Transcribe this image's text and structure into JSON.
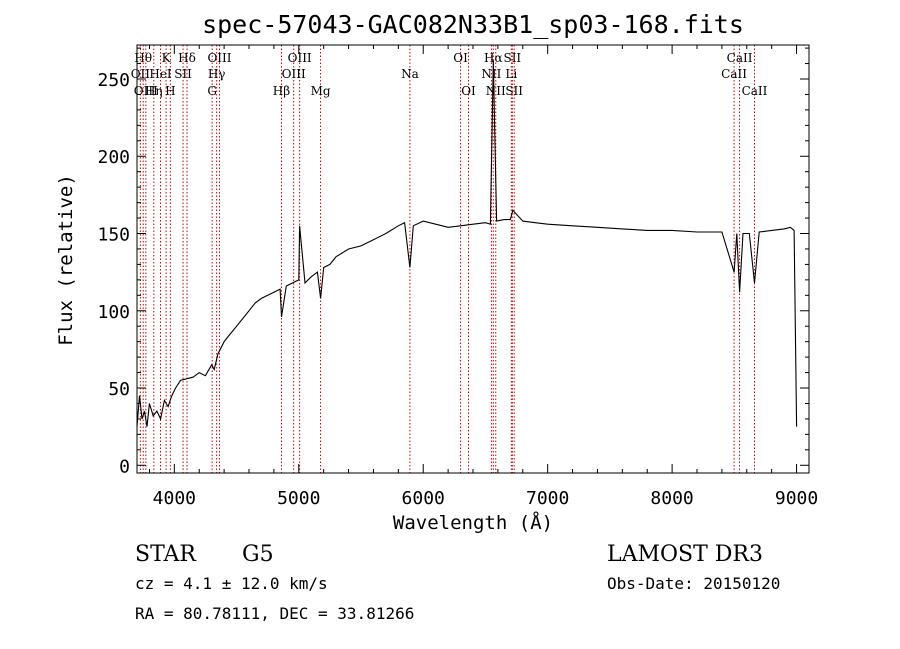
{
  "chart_data": {
    "type": "line",
    "title": "spec-57043-GAC082N33B1_sp03-168.fits",
    "xlabel": "Wavelength (Å)",
    "ylabel": "Flux (relative)",
    "xlim": [
      3700,
      9100
    ],
    "ylim": [
      -5,
      272
    ],
    "x_ticks": [
      4000,
      5000,
      6000,
      7000,
      8000,
      9000
    ],
    "x_tick_labels": [
      "4000",
      "5000",
      "6000",
      "7000",
      "8000",
      "9000"
    ],
    "y_ticks": [
      0,
      50,
      100,
      150,
      200,
      250
    ],
    "y_tick_labels": [
      "0",
      "50",
      "100",
      "150",
      "200",
      "250"
    ],
    "grid": false,
    "legend": "none",
    "series": [
      {
        "name": "spectrum",
        "x": [
          3700,
          3720,
          3740,
          3760,
          3780,
          3800,
          3830,
          3860,
          3890,
          3920,
          3950,
          3980,
          4010,
          4050,
          4100,
          4150,
          4200,
          4250,
          4300,
          4320,
          4350,
          4400,
          4450,
          4500,
          4550,
          4600,
          4650,
          4700,
          4750,
          4800,
          4850,
          4861,
          4900,
          4950,
          5000,
          5007,
          5050,
          5100,
          5150,
          5175,
          5200,
          5250,
          5300,
          5400,
          5500,
          5600,
          5700,
          5800,
          5850,
          5893,
          5920,
          6000,
          6100,
          6200,
          6300,
          6400,
          6500,
          6540,
          6563,
          6590,
          6650,
          6700,
          6720,
          6800,
          6900,
          7000,
          7200,
          7400,
          7600,
          7800,
          8000,
          8200,
          8400,
          8498,
          8520,
          8542,
          8570,
          8620,
          8662,
          8700,
          8800,
          8900,
          8950,
          8980,
          9000
        ],
        "y": [
          25,
          45,
          30,
          35,
          25,
          40,
          32,
          35,
          30,
          42,
          38,
          45,
          50,
          55,
          56,
          57,
          60,
          58,
          65,
          62,
          72,
          80,
          85,
          90,
          95,
          100,
          105,
          108,
          110,
          112,
          114,
          96,
          116,
          118,
          120,
          155,
          118,
          122,
          125,
          108,
          128,
          130,
          135,
          140,
          142,
          146,
          150,
          155,
          157,
          128,
          155,
          158,
          156,
          154,
          155,
          156,
          157,
          156,
          262,
          158,
          159,
          159,
          165,
          158,
          157,
          156,
          155,
          154,
          153,
          152,
          152,
          151,
          151,
          125,
          150,
          112,
          150,
          150,
          118,
          151,
          152,
          153,
          154,
          152,
          25
        ]
      }
    ],
    "line_markers": [
      {
        "wl": 3727,
        "label": "OII",
        "row": 1
      },
      {
        "wl": 3750,
        "label": "Hθ",
        "row": 0
      },
      {
        "wl": 3771,
        "label": "OIII",
        "row": 2
      },
      {
        "wl": 3835,
        "label": "Hη",
        "row": 2
      },
      {
        "wl": 3889,
        "label": "HeI",
        "row": 1
      },
      {
        "wl": 3934,
        "label": "K",
        "row": 0
      },
      {
        "wl": 3968,
        "label": "H",
        "row": 2
      },
      {
        "wl": 4070,
        "label": "SII",
        "row": 1
      },
      {
        "wl": 4102,
        "label": "Hδ",
        "row": 0
      },
      {
        "wl": 4304,
        "label": "G",
        "row": 2
      },
      {
        "wl": 4340,
        "label": "Hγ",
        "row": 1
      },
      {
        "wl": 4363,
        "label": "OIII",
        "row": 0
      },
      {
        "wl": 4861,
        "label": "Hβ",
        "row": 2
      },
      {
        "wl": 4959,
        "label": "OIII",
        "row": 1
      },
      {
        "wl": 5007,
        "label": "OIII",
        "row": 0
      },
      {
        "wl": 5175,
        "label": "Mg",
        "row": 2
      },
      {
        "wl": 5893,
        "label": "Na",
        "row": 1
      },
      {
        "wl": 6300,
        "label": "OI",
        "row": 0
      },
      {
        "wl": 6364,
        "label": "OI",
        "row": 2
      },
      {
        "wl": 6548,
        "label": "NII",
        "row": 1
      },
      {
        "wl": 6563,
        "label": "Hα",
        "row": 0
      },
      {
        "wl": 6583,
        "label": "NII",
        "row": 2
      },
      {
        "wl": 6708,
        "label": "Li",
        "row": 1
      },
      {
        "wl": 6716,
        "label": "SII",
        "row": 0
      },
      {
        "wl": 6731,
        "label": "SII",
        "row": 2
      },
      {
        "wl": 8498,
        "label": "CaII",
        "row": 1
      },
      {
        "wl": 8542,
        "label": "CaII",
        "row": 0
      },
      {
        "wl": 8662,
        "label": "CaII",
        "row": 2
      }
    ]
  },
  "info": {
    "object_class": "STAR",
    "subclass": "G5",
    "redshift_line": "cz =  4.1 ± 12.0 km/s",
    "coords_line": "RA =  80.78111, DEC =  33.81266",
    "survey": "LAMOST DR3",
    "obs_date_line": "Obs-Date: 20150120"
  },
  "colors": {
    "spectrum": "#000000",
    "marker_line": "#cc0000",
    "axes": "#000000",
    "background": "#ffffff"
  }
}
